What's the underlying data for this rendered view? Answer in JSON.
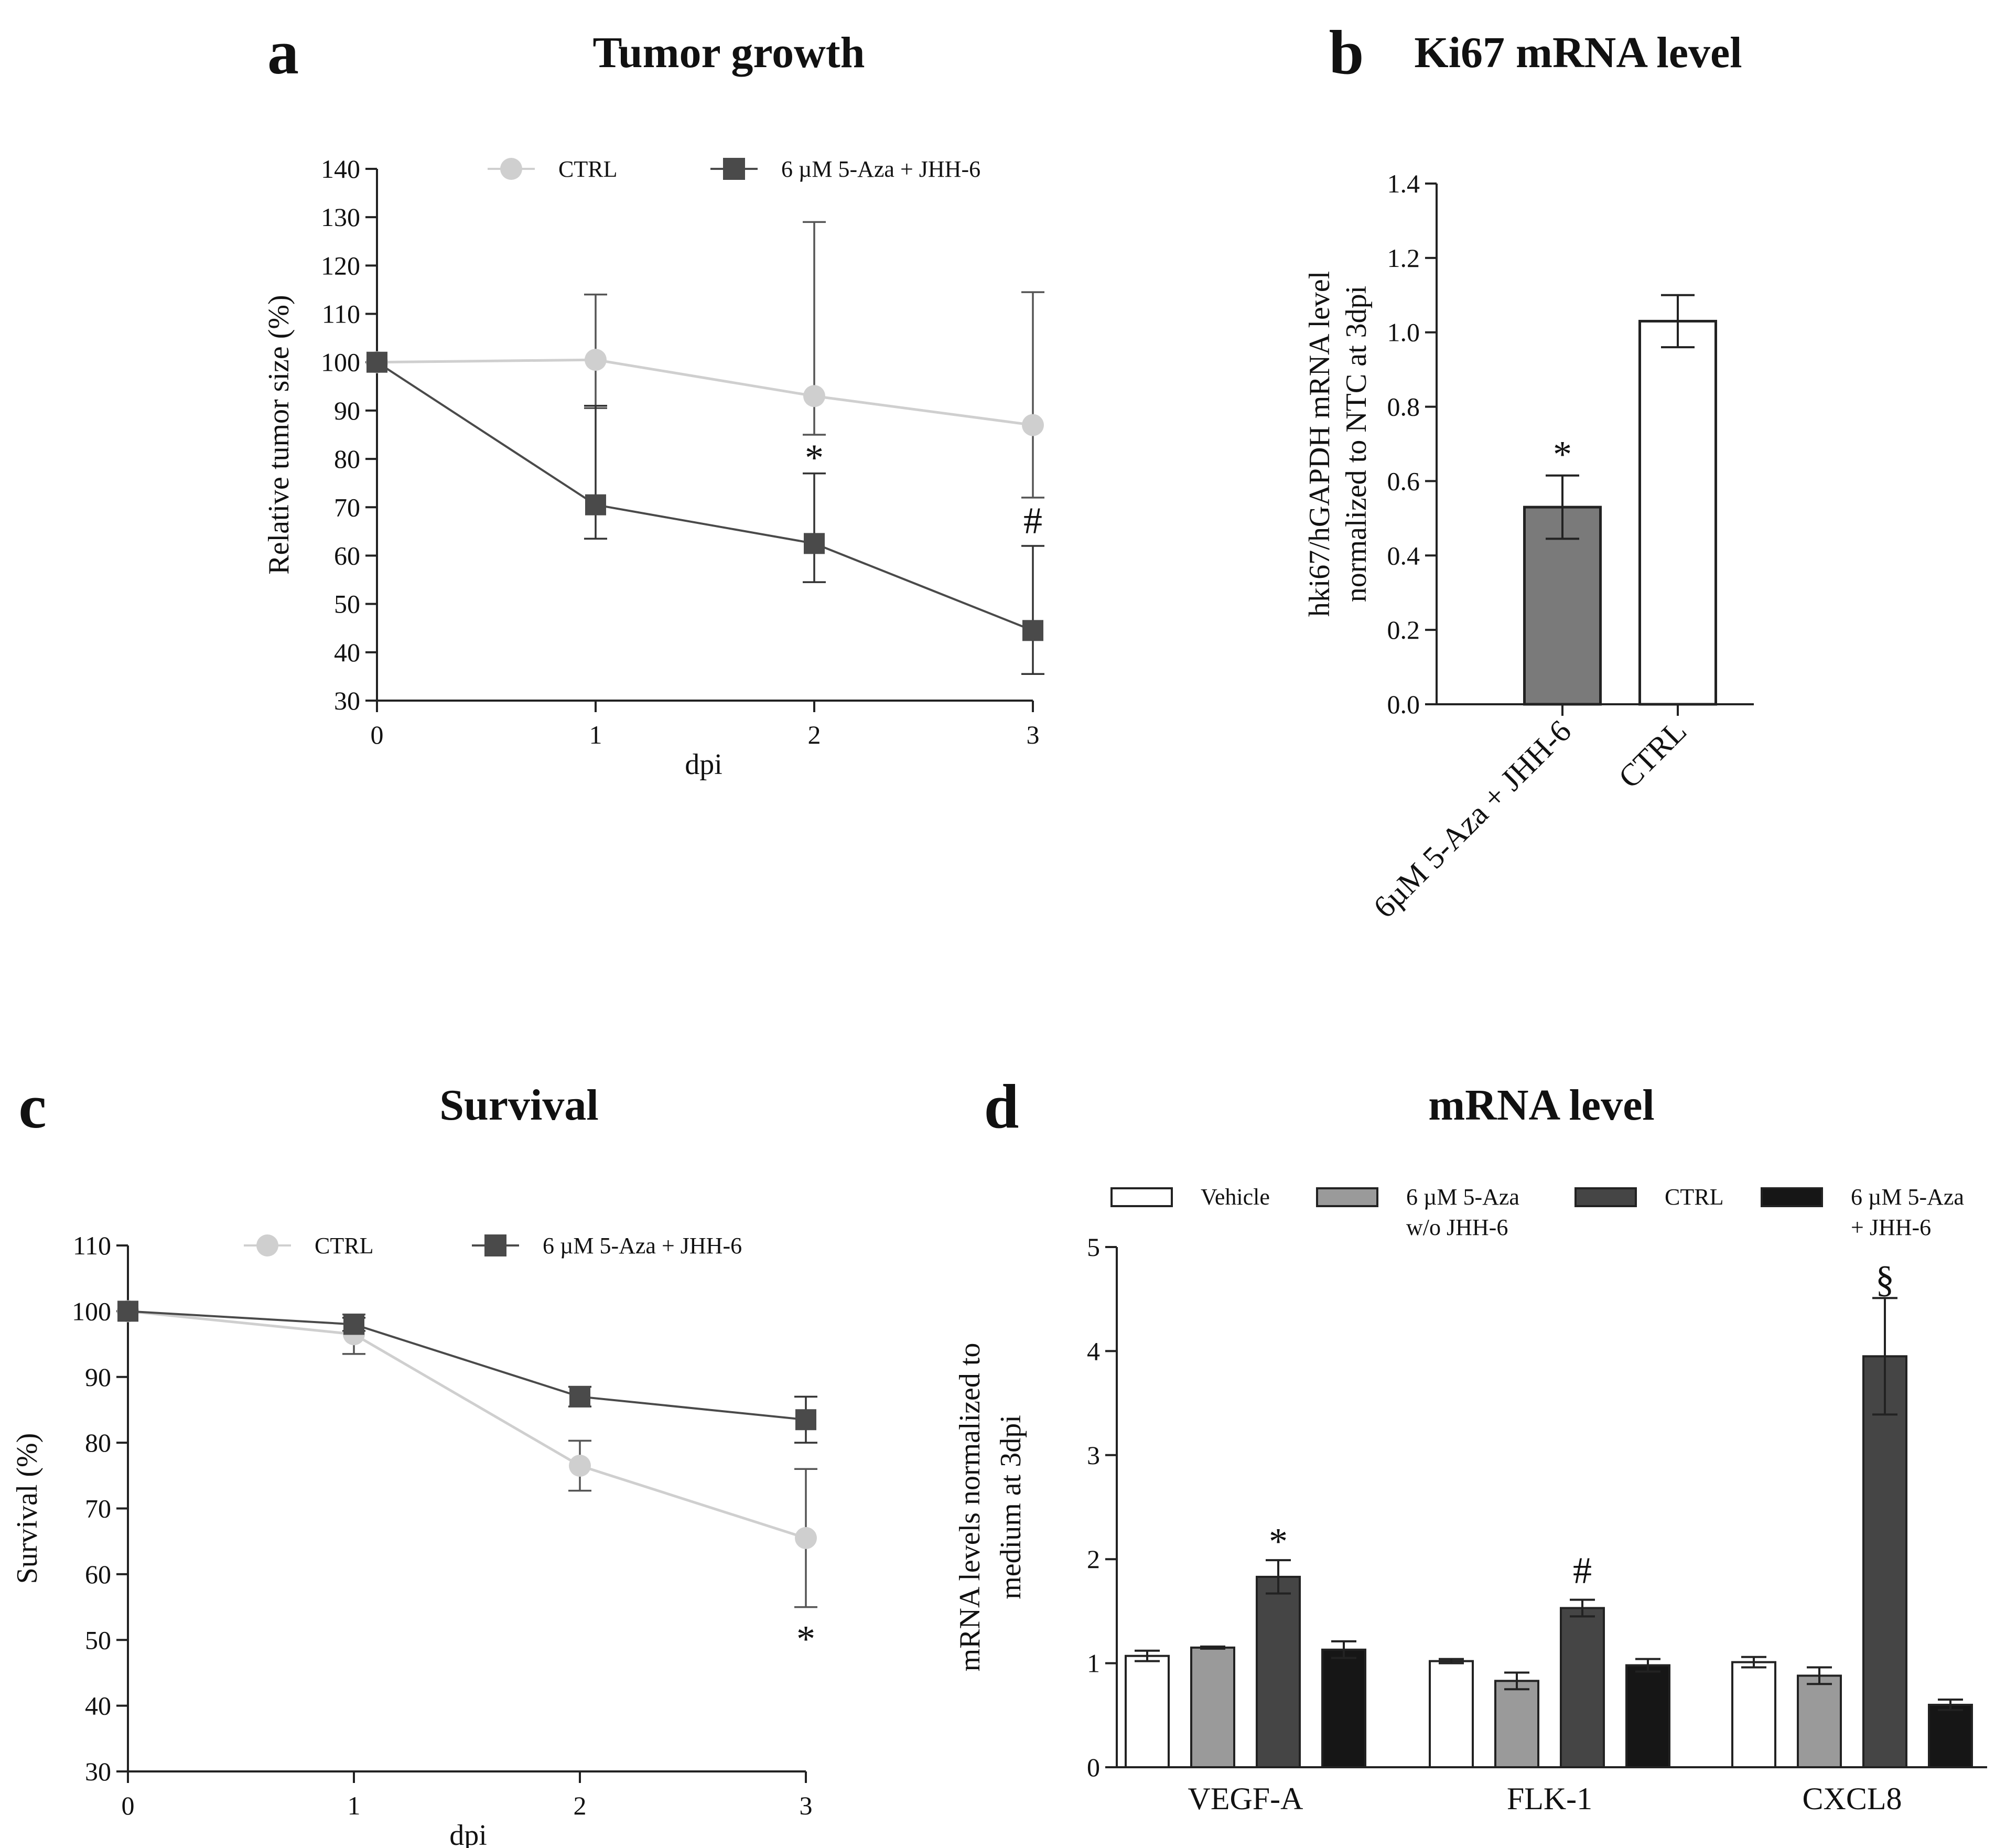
{
  "figure": {
    "panels": [
      {
        "letter": "a",
        "title": "Tumor growth"
      },
      {
        "letter": "b",
        "title": "Ki67 mRNA level"
      },
      {
        "letter": "c",
        "title": "Survival"
      },
      {
        "letter": "d",
        "title": "mRNA level"
      }
    ]
  },
  "colors": {
    "ctrl_light": "#cfcfcf",
    "treated_dark": "#4a4a4a",
    "bar_treated_b": "#7a7a7a",
    "vehicle": "#ffffff",
    "aza_wo": "#9a9a9a",
    "ctrl_dark": "#454545",
    "aza_plus": "#161616"
  },
  "chart_data": [
    {
      "panel": "a",
      "type": "line",
      "title": "Tumor growth",
      "xlabel": "dpi",
      "ylabel": "Relative tumor size (%)",
      "x": [
        0,
        1,
        2,
        3
      ],
      "xticks": [
        "0",
        "1",
        "2",
        "3"
      ],
      "ylim": [
        30,
        140
      ],
      "yticks": [
        "30",
        "40",
        "50",
        "60",
        "70",
        "80",
        "90",
        "100",
        "110",
        "120",
        "130",
        "140"
      ],
      "legend": [
        "CTRL",
        "6 µM 5-Aza + JHH-6"
      ],
      "series": [
        {
          "name": "CTRL",
          "marker": "circle",
          "values": [
            100,
            100.5,
            93,
            87
          ],
          "err_up": [
            0,
            13.5,
            36,
            27.5
          ],
          "err_down": [
            0,
            10,
            8,
            15
          ]
        },
        {
          "name": "6 µM 5-Aza + JHH-6",
          "marker": "square",
          "values": [
            100,
            70.5,
            62.5,
            44.5
          ],
          "err_up": [
            0,
            20.5,
            14.5,
            17.5
          ],
          "err_down": [
            0,
            7,
            8,
            9
          ]
        }
      ],
      "annotations": [
        {
          "text": "*",
          "x": 2,
          "y": 80
        },
        {
          "text": "#",
          "x": 3,
          "y": 67
        }
      ]
    },
    {
      "panel": "b",
      "type": "bar",
      "title": "Ki67 mRNA level",
      "ylabel": "hki67/hGAPDH mRNA level normalized to NTC at 3dpi",
      "ylabel_lines": [
        "hki67/hGAPDH mRNA level",
        "normalized to NTC at 3dpi"
      ],
      "categories": [
        "6µM 5-Aza + JHH-6",
        "CTRL"
      ],
      "values": [
        0.53,
        1.03
      ],
      "err": [
        0.085,
        0.07
      ],
      "ylim": [
        0,
        1.4
      ],
      "yticks": [
        "0.0",
        "0.2",
        "0.4",
        "0.6",
        "0.8",
        "1.0",
        "1.2",
        "1.4"
      ],
      "annotations": [
        {
          "text": "*",
          "category": "6µM 5-Aza + JHH-6",
          "y": 0.68
        }
      ]
    },
    {
      "panel": "c",
      "type": "line",
      "title": "Survival",
      "xlabel": "dpi",
      "ylabel": "Survival (%)",
      "x": [
        0,
        1,
        2,
        3
      ],
      "xticks": [
        "0",
        "1",
        "2",
        "3"
      ],
      "ylim": [
        30,
        110
      ],
      "yticks": [
        "30",
        "40",
        "50",
        "60",
        "70",
        "80",
        "90",
        "100",
        "110"
      ],
      "legend": [
        "CTRL",
        "6 µM 5-Aza + JHH-6"
      ],
      "series": [
        {
          "name": "CTRL",
          "marker": "circle",
          "values": [
            100,
            96.5,
            76.5,
            65.5
          ],
          "err": [
            0,
            3,
            3.8,
            10.5
          ]
        },
        {
          "name": "6 µM 5-Aza + JHH-6",
          "marker": "square",
          "values": [
            100,
            98,
            87,
            83.5
          ],
          "err": [
            0,
            1,
            1.5,
            3.5
          ]
        }
      ],
      "annotations": [
        {
          "text": "*",
          "x": 3,
          "y": 50
        }
      ]
    },
    {
      "panel": "d",
      "type": "bar",
      "title": "mRNA level",
      "ylabel": "mRNA levels normalized to medium at 3dpi",
      "ylabel_lines": [
        "mRNA levels normalized to",
        "medium at 3dpi"
      ],
      "categories": [
        "VEGF-A",
        "FLK-1",
        "CXCL8"
      ],
      "ylim": [
        0,
        5
      ],
      "yticks": [
        "0",
        "1",
        "2",
        "3",
        "4",
        "5"
      ],
      "legend": [
        "Vehicle",
        "6 µM 5-Aza w/o JHH-6",
        "CTRL",
        "6 µM 5-Aza + JHH-6"
      ],
      "legend_lines": [
        [
          "Vehicle"
        ],
        [
          "6 µM 5-Aza",
          "w/o JHH-6"
        ],
        [
          "CTRL"
        ],
        [
          "6 µM 5-Aza",
          "+ JHH-6"
        ]
      ],
      "series": [
        {
          "name": "Vehicle",
          "values": [
            1.07,
            1.02,
            1.01
          ],
          "err": [
            0.05,
            0.02,
            0.05
          ]
        },
        {
          "name": "6 µM 5-Aza w/o JHH-6",
          "values": [
            1.15,
            0.83,
            0.88
          ],
          "err": [
            0.01,
            0.08,
            0.08
          ]
        },
        {
          "name": "CTRL",
          "values": [
            1.83,
            1.53,
            3.95
          ],
          "err": [
            0.16,
            0.08,
            0.56
          ]
        },
        {
          "name": "6 µM 5-Aza + JHH-6",
          "values": [
            1.13,
            0.98,
            0.6
          ],
          "err": [
            0.08,
            0.06,
            0.05
          ]
        }
      ],
      "annotations": [
        {
          "text": "*",
          "category": "VEGF-A",
          "series": "CTRL",
          "y": 2.2
        },
        {
          "text": "#",
          "category": "FLK-1",
          "series": "CTRL",
          "y": 1.92
        },
        {
          "text": "§",
          "category": "CXCL8",
          "series": "CTRL",
          "y": 4.72
        }
      ]
    }
  ]
}
